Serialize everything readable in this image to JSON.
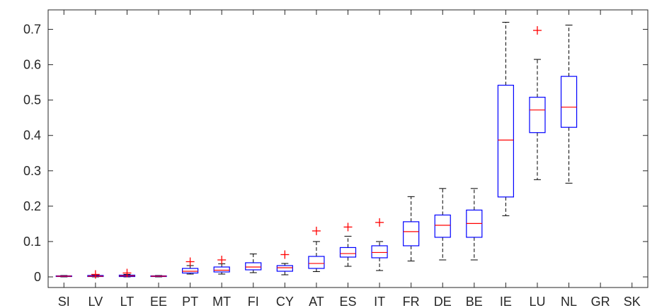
{
  "chart_data": {
    "type": "box",
    "title": "",
    "xlabel": "",
    "ylabel": "",
    "ylim": [
      -0.03,
      0.755
    ],
    "yticks": [
      0,
      0.1,
      0.2,
      0.3,
      0.4,
      0.5,
      0.6,
      0.7
    ],
    "ytick_labels": [
      "0",
      "0.1",
      "0.2",
      "0.3",
      "0.4",
      "0.5",
      "0.6",
      "0.7"
    ],
    "grid": false,
    "colors": {
      "box": "#0000ff",
      "median": "#ff0000",
      "whisker": "#000000",
      "outlier": "#ff0000",
      "axis": "#262626"
    },
    "categories": [
      "SI",
      "LV",
      "LT",
      "EE",
      "PT",
      "MT",
      "FI",
      "CY",
      "AT",
      "ES",
      "IT",
      "FR",
      "DE",
      "BE",
      "IE",
      "LU",
      "NL",
      "GR",
      "SK"
    ],
    "boxes": [
      {
        "label": "SI",
        "low": 0.0,
        "q1": 0.001,
        "median": 0.002,
        "q3": 0.003,
        "high": 0.004,
        "outliers": []
      },
      {
        "label": "LV",
        "low": 0.0,
        "q1": 0.001,
        "median": 0.002,
        "q3": 0.004,
        "high": 0.006,
        "outliers": [
          0.007
        ]
      },
      {
        "label": "LT",
        "low": 0.0,
        "q1": 0.001,
        "median": 0.003,
        "q3": 0.005,
        "high": 0.007,
        "outliers": [
          0.011
        ]
      },
      {
        "label": "EE",
        "low": 0.0,
        "q1": 0.001,
        "median": 0.002,
        "q3": 0.003,
        "high": 0.004,
        "outliers": []
      },
      {
        "label": "PT",
        "low": 0.008,
        "q1": 0.011,
        "median": 0.016,
        "q3": 0.024,
        "high": 0.032,
        "outliers": [
          0.043
        ]
      },
      {
        "label": "MT",
        "low": 0.008,
        "q1": 0.014,
        "median": 0.019,
        "q3": 0.028,
        "high": 0.037,
        "outliers": [
          0.048
        ]
      },
      {
        "label": "FI",
        "low": 0.012,
        "q1": 0.02,
        "median": 0.028,
        "q3": 0.04,
        "high": 0.065,
        "outliers": []
      },
      {
        "label": "CY",
        "low": 0.006,
        "q1": 0.016,
        "median": 0.026,
        "q3": 0.032,
        "high": 0.038,
        "outliers": [
          0.063
        ]
      },
      {
        "label": "AT",
        "low": 0.015,
        "q1": 0.024,
        "median": 0.038,
        "q3": 0.058,
        "high": 0.1,
        "outliers": [
          0.13
        ]
      },
      {
        "label": "ES",
        "low": 0.03,
        "q1": 0.056,
        "median": 0.066,
        "q3": 0.083,
        "high": 0.115,
        "outliers": [
          0.141
        ]
      },
      {
        "label": "IT",
        "low": 0.018,
        "q1": 0.054,
        "median": 0.069,
        "q3": 0.088,
        "high": 0.1,
        "outliers": [
          0.154
        ]
      },
      {
        "label": "FR",
        "low": 0.045,
        "q1": 0.088,
        "median": 0.128,
        "q3": 0.156,
        "high": 0.227,
        "outliers": []
      },
      {
        "label": "DE",
        "low": 0.048,
        "q1": 0.112,
        "median": 0.146,
        "q3": 0.175,
        "high": 0.25,
        "outliers": []
      },
      {
        "label": "BE",
        "low": 0.048,
        "q1": 0.112,
        "median": 0.151,
        "q3": 0.189,
        "high": 0.25,
        "outliers": []
      },
      {
        "label": "IE",
        "low": 0.173,
        "q1": 0.226,
        "median": 0.387,
        "q3": 0.542,
        "high": 0.72,
        "outliers": []
      },
      {
        "label": "LU",
        "low": 0.275,
        "q1": 0.408,
        "median": 0.472,
        "q3": 0.508,
        "high": 0.615,
        "outliers": [
          0.697
        ]
      },
      {
        "label": "NL",
        "low": 0.265,
        "q1": 0.423,
        "median": 0.48,
        "q3": 0.567,
        "high": 0.712,
        "outliers": []
      },
      {
        "label": "GR",
        "low": null,
        "q1": null,
        "median": null,
        "q3": null,
        "high": null,
        "outliers": []
      },
      {
        "label": "SK",
        "low": null,
        "q1": null,
        "median": null,
        "q3": null,
        "high": null,
        "outliers": []
      }
    ]
  }
}
